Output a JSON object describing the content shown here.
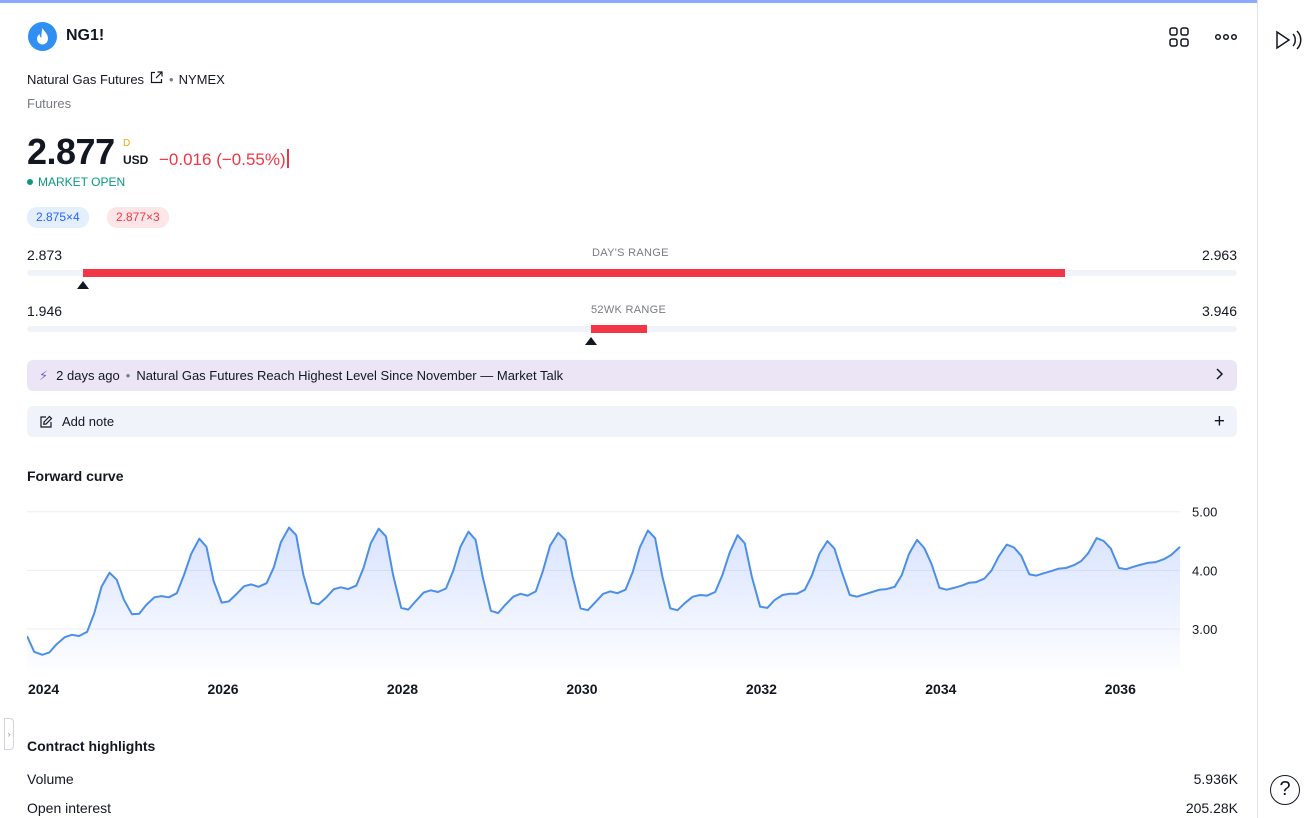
{
  "header": {
    "symbol": "NG1!",
    "logo_icon": "flame-icon",
    "grid_icon": "grid-icon",
    "more_icon": "more-horizontal-icon"
  },
  "instrument": {
    "description": "Natural Gas Futures",
    "exchange": "NYMEX",
    "type": "Futures"
  },
  "quote": {
    "price": "2.877",
    "d_mark": "D",
    "currency": "USD",
    "change": "−0.016 (−0.55%)",
    "status": "MARKET OPEN",
    "bid": "2.875×4",
    "ask": "2.877×3",
    "colors": {
      "up": "#089981",
      "down": "#f23645",
      "accent": "#2962ff"
    }
  },
  "days_range": {
    "title": "DAY'S RANGE",
    "low": "2.873",
    "high": "2.963",
    "fill_start": 0.046,
    "fill_end": 0.858,
    "marker": 0.046
  },
  "week52_range": {
    "title": "52WK RANGE",
    "low": "1.946",
    "high": "3.946",
    "fill_start": 0.466,
    "fill_end": 0.512,
    "marker": 0.466
  },
  "news": {
    "time": "2 days ago",
    "headline": "Natural Gas Futures Reach Highest Level Since November — Market Talk"
  },
  "note": {
    "label": "Add note"
  },
  "forward_curve": {
    "title": "Forward curve"
  },
  "chart_data": {
    "type": "area",
    "title": "Forward curve",
    "xlabel": "",
    "ylabel": "",
    "x_ticks": [
      "2024",
      "2026",
      "2028",
      "2030",
      "2032",
      "2034",
      "2036"
    ],
    "y_ticks": [
      "5.00",
      "4.00",
      "3.00"
    ],
    "xlim": [
      2024.0,
      2036.85
    ],
    "ylim": [
      2.3,
      5.2
    ],
    "grid": true,
    "series": [
      {
        "x": [
          2024.0,
          2024.08,
          2024.17,
          2024.25,
          2024.33,
          2024.42,
          2024.5,
          2024.58,
          2024.67,
          2024.75,
          2024.83,
          2024.92,
          2025.0,
          2025.08,
          2025.17,
          2025.25,
          2025.33,
          2025.42,
          2025.5,
          2025.58,
          2025.67,
          2025.75,
          2025.83,
          2025.92,
          2026.0,
          2026.08,
          2026.17,
          2026.25,
          2026.33,
          2026.42,
          2026.5,
          2026.58,
          2026.67,
          2026.75,
          2026.83,
          2026.92,
          2027.0,
          2027.08,
          2027.17,
          2027.25,
          2027.33,
          2027.42,
          2027.5,
          2027.58,
          2027.67,
          2027.75,
          2027.83,
          2027.92,
          2028.0,
          2028.08,
          2028.17,
          2028.25,
          2028.33,
          2028.42,
          2028.5,
          2028.58,
          2028.67,
          2028.75,
          2028.83,
          2028.92,
          2029.0,
          2029.08,
          2029.17,
          2029.25,
          2029.33,
          2029.42,
          2029.5,
          2029.58,
          2029.67,
          2029.75,
          2029.83,
          2029.92,
          2030.0,
          2030.08,
          2030.17,
          2030.25,
          2030.33,
          2030.42,
          2030.5,
          2030.58,
          2030.67,
          2030.75,
          2030.83,
          2030.92,
          2031.0,
          2031.08,
          2031.17,
          2031.25,
          2031.33,
          2031.42,
          2031.5,
          2031.58,
          2031.67,
          2031.75,
          2031.83,
          2031.92,
          2032.0,
          2032.08,
          2032.17,
          2032.25,
          2032.33,
          2032.42,
          2032.5,
          2032.58,
          2032.67,
          2032.75,
          2032.83,
          2032.92,
          2033.0,
          2033.08,
          2033.17,
          2033.25,
          2033.33,
          2033.42,
          2033.5,
          2033.58,
          2033.67,
          2033.75,
          2033.83,
          2033.92,
          2034.0,
          2034.08,
          2034.17,
          2034.25,
          2034.33,
          2034.42,
          2034.5,
          2034.58,
          2034.67,
          2034.75,
          2034.83,
          2034.92,
          2035.0,
          2035.08,
          2035.17,
          2035.25,
          2035.33,
          2035.42,
          2035.5,
          2035.58,
          2035.67,
          2035.75,
          2035.83,
          2035.92,
          2036.0,
          2036.08,
          2036.17,
          2036.25,
          2036.33,
          2036.42,
          2036.5,
          2036.58,
          2036.67,
          2036.75,
          2036.85
        ],
        "values": [
          2.88,
          2.61,
          2.56,
          2.6,
          2.74,
          2.86,
          2.9,
          2.88,
          2.95,
          3.27,
          3.72,
          3.96,
          3.84,
          3.5,
          3.25,
          3.26,
          3.41,
          3.54,
          3.56,
          3.54,
          3.61,
          3.92,
          4.28,
          4.54,
          4.4,
          3.82,
          3.45,
          3.47,
          3.59,
          3.73,
          3.76,
          3.72,
          3.78,
          4.05,
          4.48,
          4.73,
          4.6,
          3.92,
          3.45,
          3.42,
          3.53,
          3.68,
          3.71,
          3.68,
          3.74,
          4.04,
          4.46,
          4.71,
          4.58,
          3.92,
          3.36,
          3.33,
          3.47,
          3.62,
          3.66,
          3.63,
          3.69,
          3.99,
          4.4,
          4.66,
          4.52,
          3.88,
          3.31,
          3.27,
          3.41,
          3.55,
          3.6,
          3.57,
          3.64,
          3.99,
          4.42,
          4.64,
          4.52,
          3.9,
          3.35,
          3.32,
          3.45,
          3.6,
          3.64,
          3.61,
          3.67,
          3.97,
          4.39,
          4.68,
          4.55,
          3.9,
          3.35,
          3.32,
          3.44,
          3.55,
          3.58,
          3.57,
          3.63,
          3.92,
          4.3,
          4.6,
          4.46,
          3.88,
          3.38,
          3.36,
          3.49,
          3.58,
          3.6,
          3.6,
          3.67,
          3.92,
          4.28,
          4.5,
          4.37,
          3.98,
          3.58,
          3.55,
          3.59,
          3.63,
          3.67,
          3.68,
          3.72,
          3.92,
          4.28,
          4.52,
          4.38,
          4.11,
          3.7,
          3.67,
          3.7,
          3.74,
          3.79,
          3.8,
          3.86,
          4.0,
          4.24,
          4.44,
          4.39,
          4.25,
          3.93,
          3.91,
          3.95,
          3.99,
          4.03,
          4.04,
          4.09,
          4.16,
          4.3,
          4.55,
          4.5,
          4.37,
          4.04,
          4.02,
          4.06,
          4.1,
          4.13,
          4.14,
          4.19,
          4.26,
          4.4
        ]
      }
    ]
  },
  "highlights": {
    "title": "Contract highlights",
    "rows": [
      {
        "label": "Volume",
        "value": "5.936K"
      },
      {
        "label": "Open interest",
        "value": "205.28K"
      }
    ]
  },
  "sidebar": {
    "play_icon": "play-sound-icon",
    "help_icon": "help-icon",
    "help_glyph": "?"
  }
}
